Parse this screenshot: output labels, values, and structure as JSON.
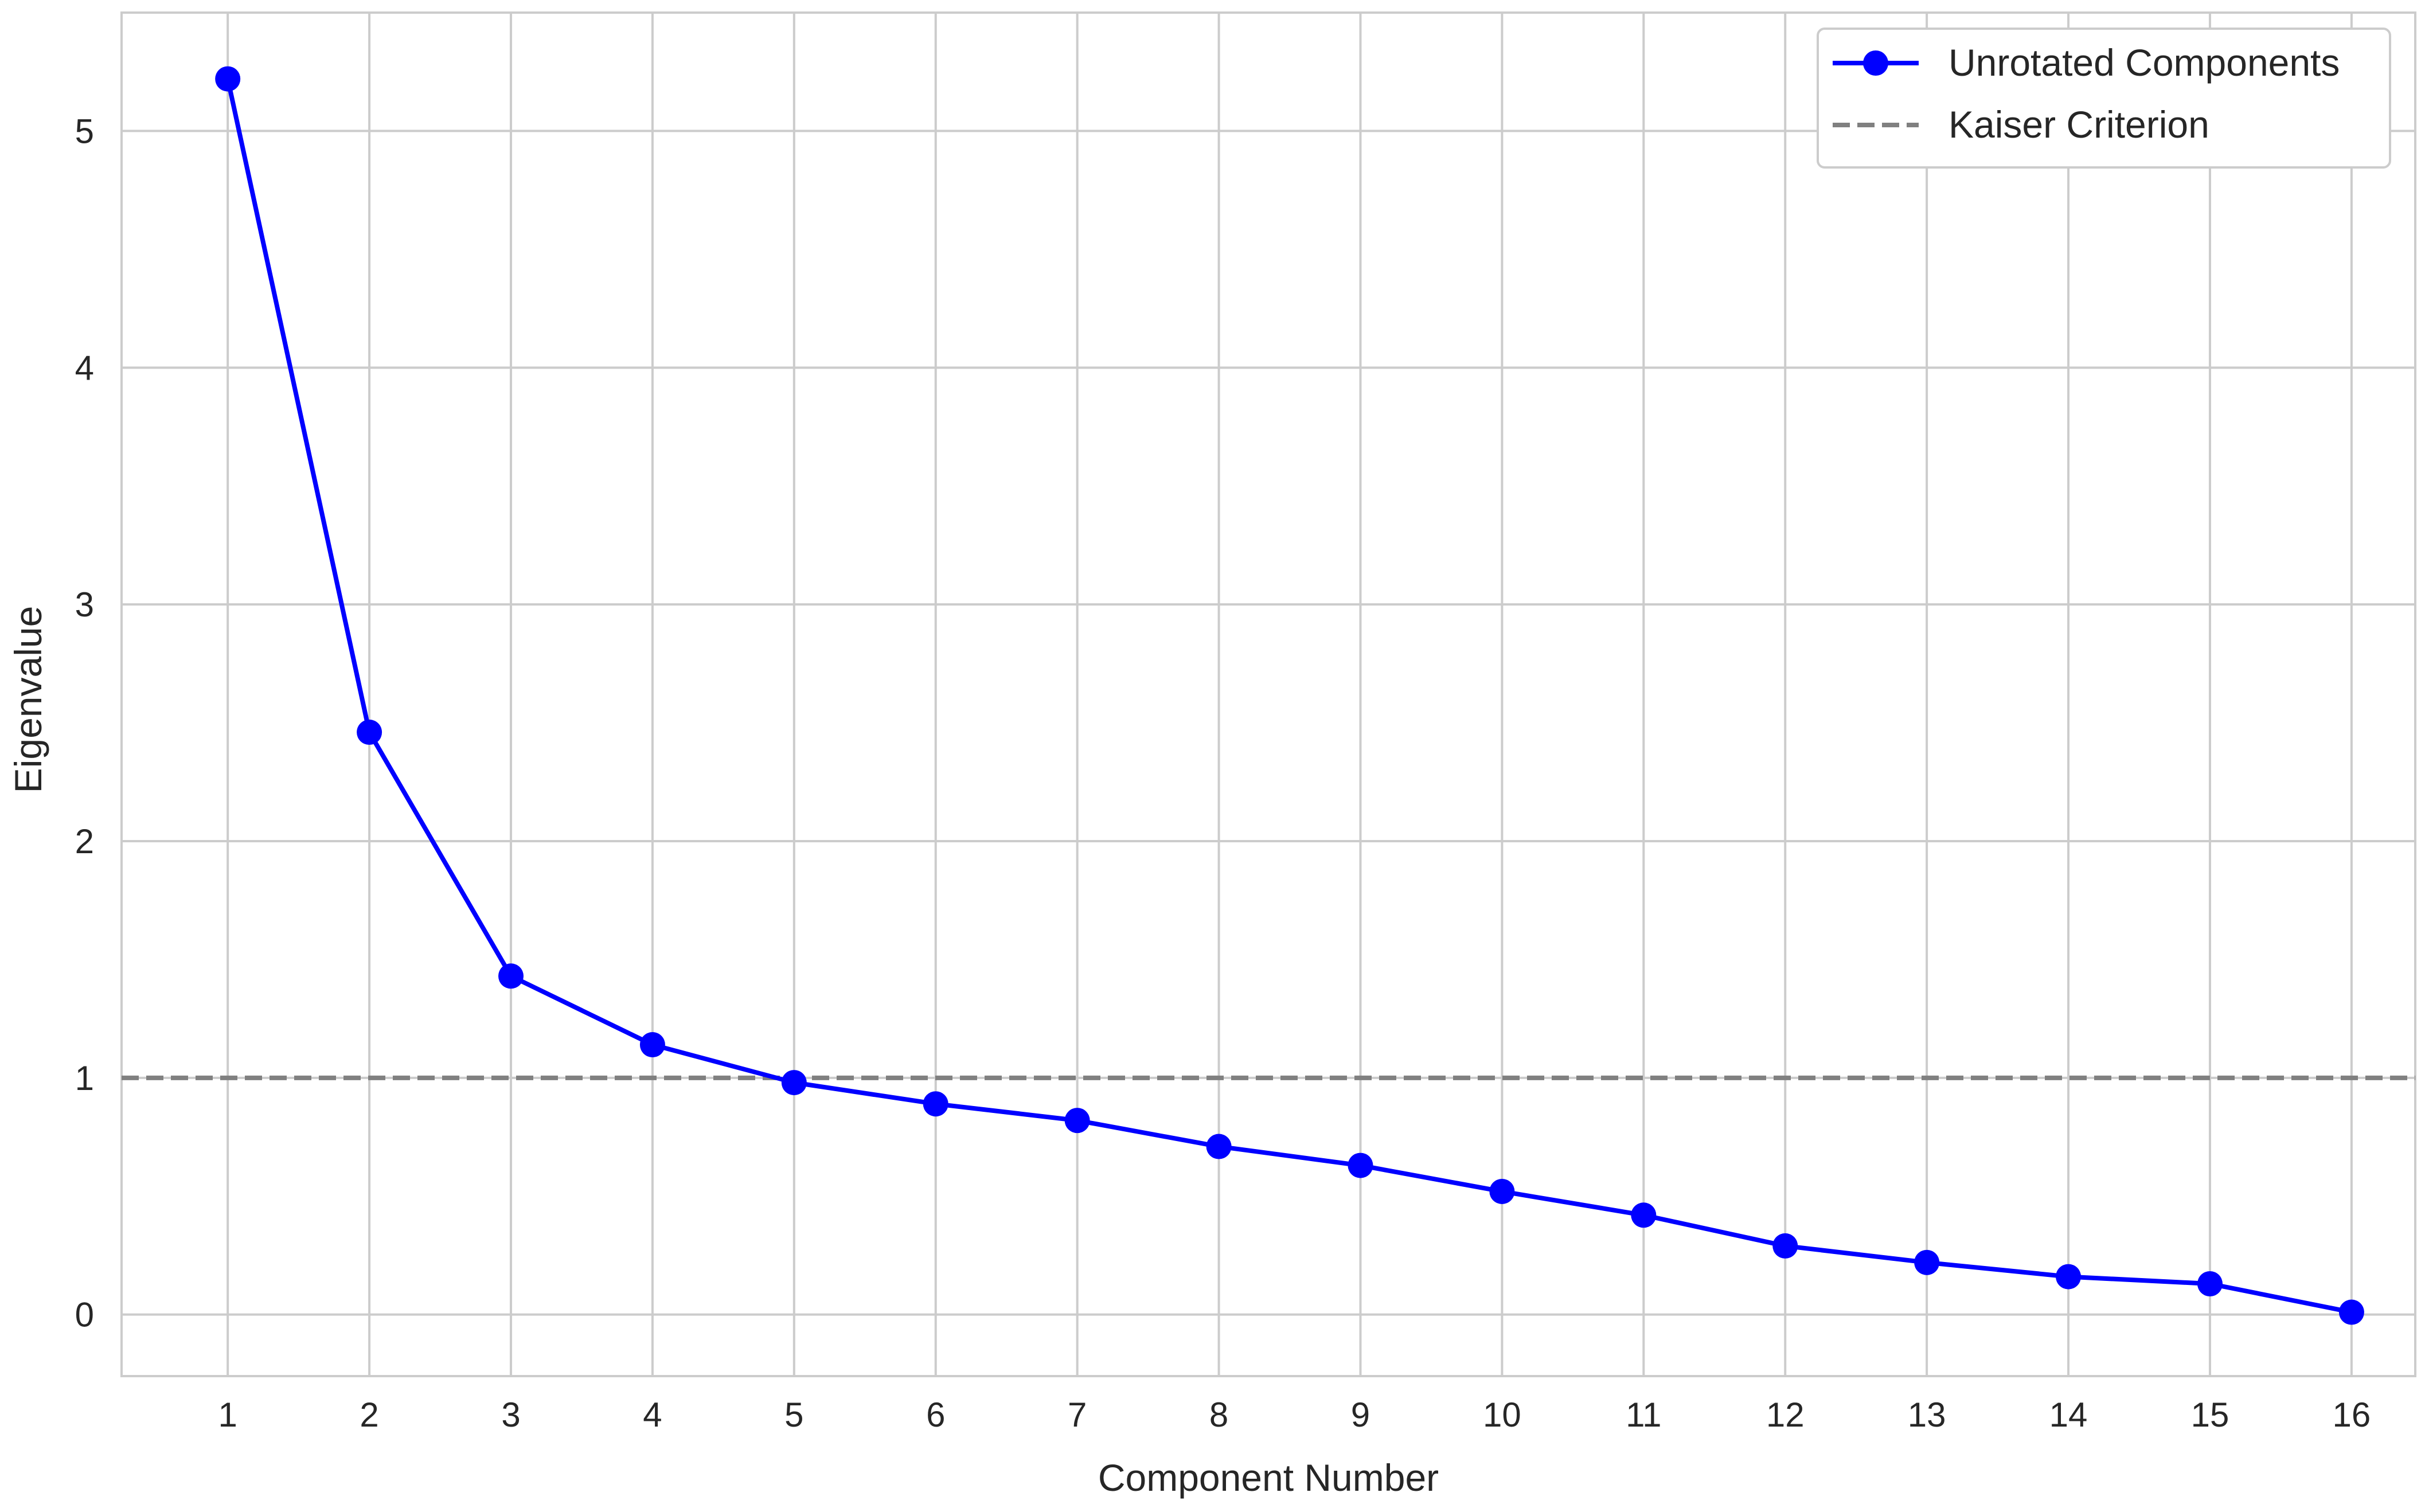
{
  "chart_data": {
    "type": "line",
    "title": "",
    "xlabel": "Component Number",
    "ylabel": "Eigenvalue",
    "x": [
      1,
      2,
      3,
      4,
      5,
      6,
      7,
      8,
      9,
      10,
      11,
      12,
      13,
      14,
      15,
      16
    ],
    "x_ticks": [
      "1",
      "2",
      "3",
      "4",
      "5",
      "6",
      "7",
      "8",
      "9",
      "10",
      "11",
      "12",
      "13",
      "14",
      "15",
      "16"
    ],
    "y_ticks": [
      "0",
      "1",
      "2",
      "3",
      "4",
      "5"
    ],
    "xlim": [
      0.25,
      16.45
    ],
    "ylim": [
      -0.26,
      5.5
    ],
    "grid": true,
    "legend_position": "top-right",
    "series": [
      {
        "name": "Unrotated Components",
        "color": "#0000ff",
        "marker": "circle",
        "line_style": "solid",
        "values": [
          5.22,
          2.46,
          1.43,
          1.14,
          0.98,
          0.89,
          0.82,
          0.71,
          0.63,
          0.52,
          0.42,
          0.29,
          0.22,
          0.16,
          0.13,
          0.01
        ]
      }
    ],
    "reference_lines": [
      {
        "name": "Kaiser Criterion",
        "y": 1,
        "color": "#808080",
        "line_style": "dashed"
      }
    ]
  }
}
